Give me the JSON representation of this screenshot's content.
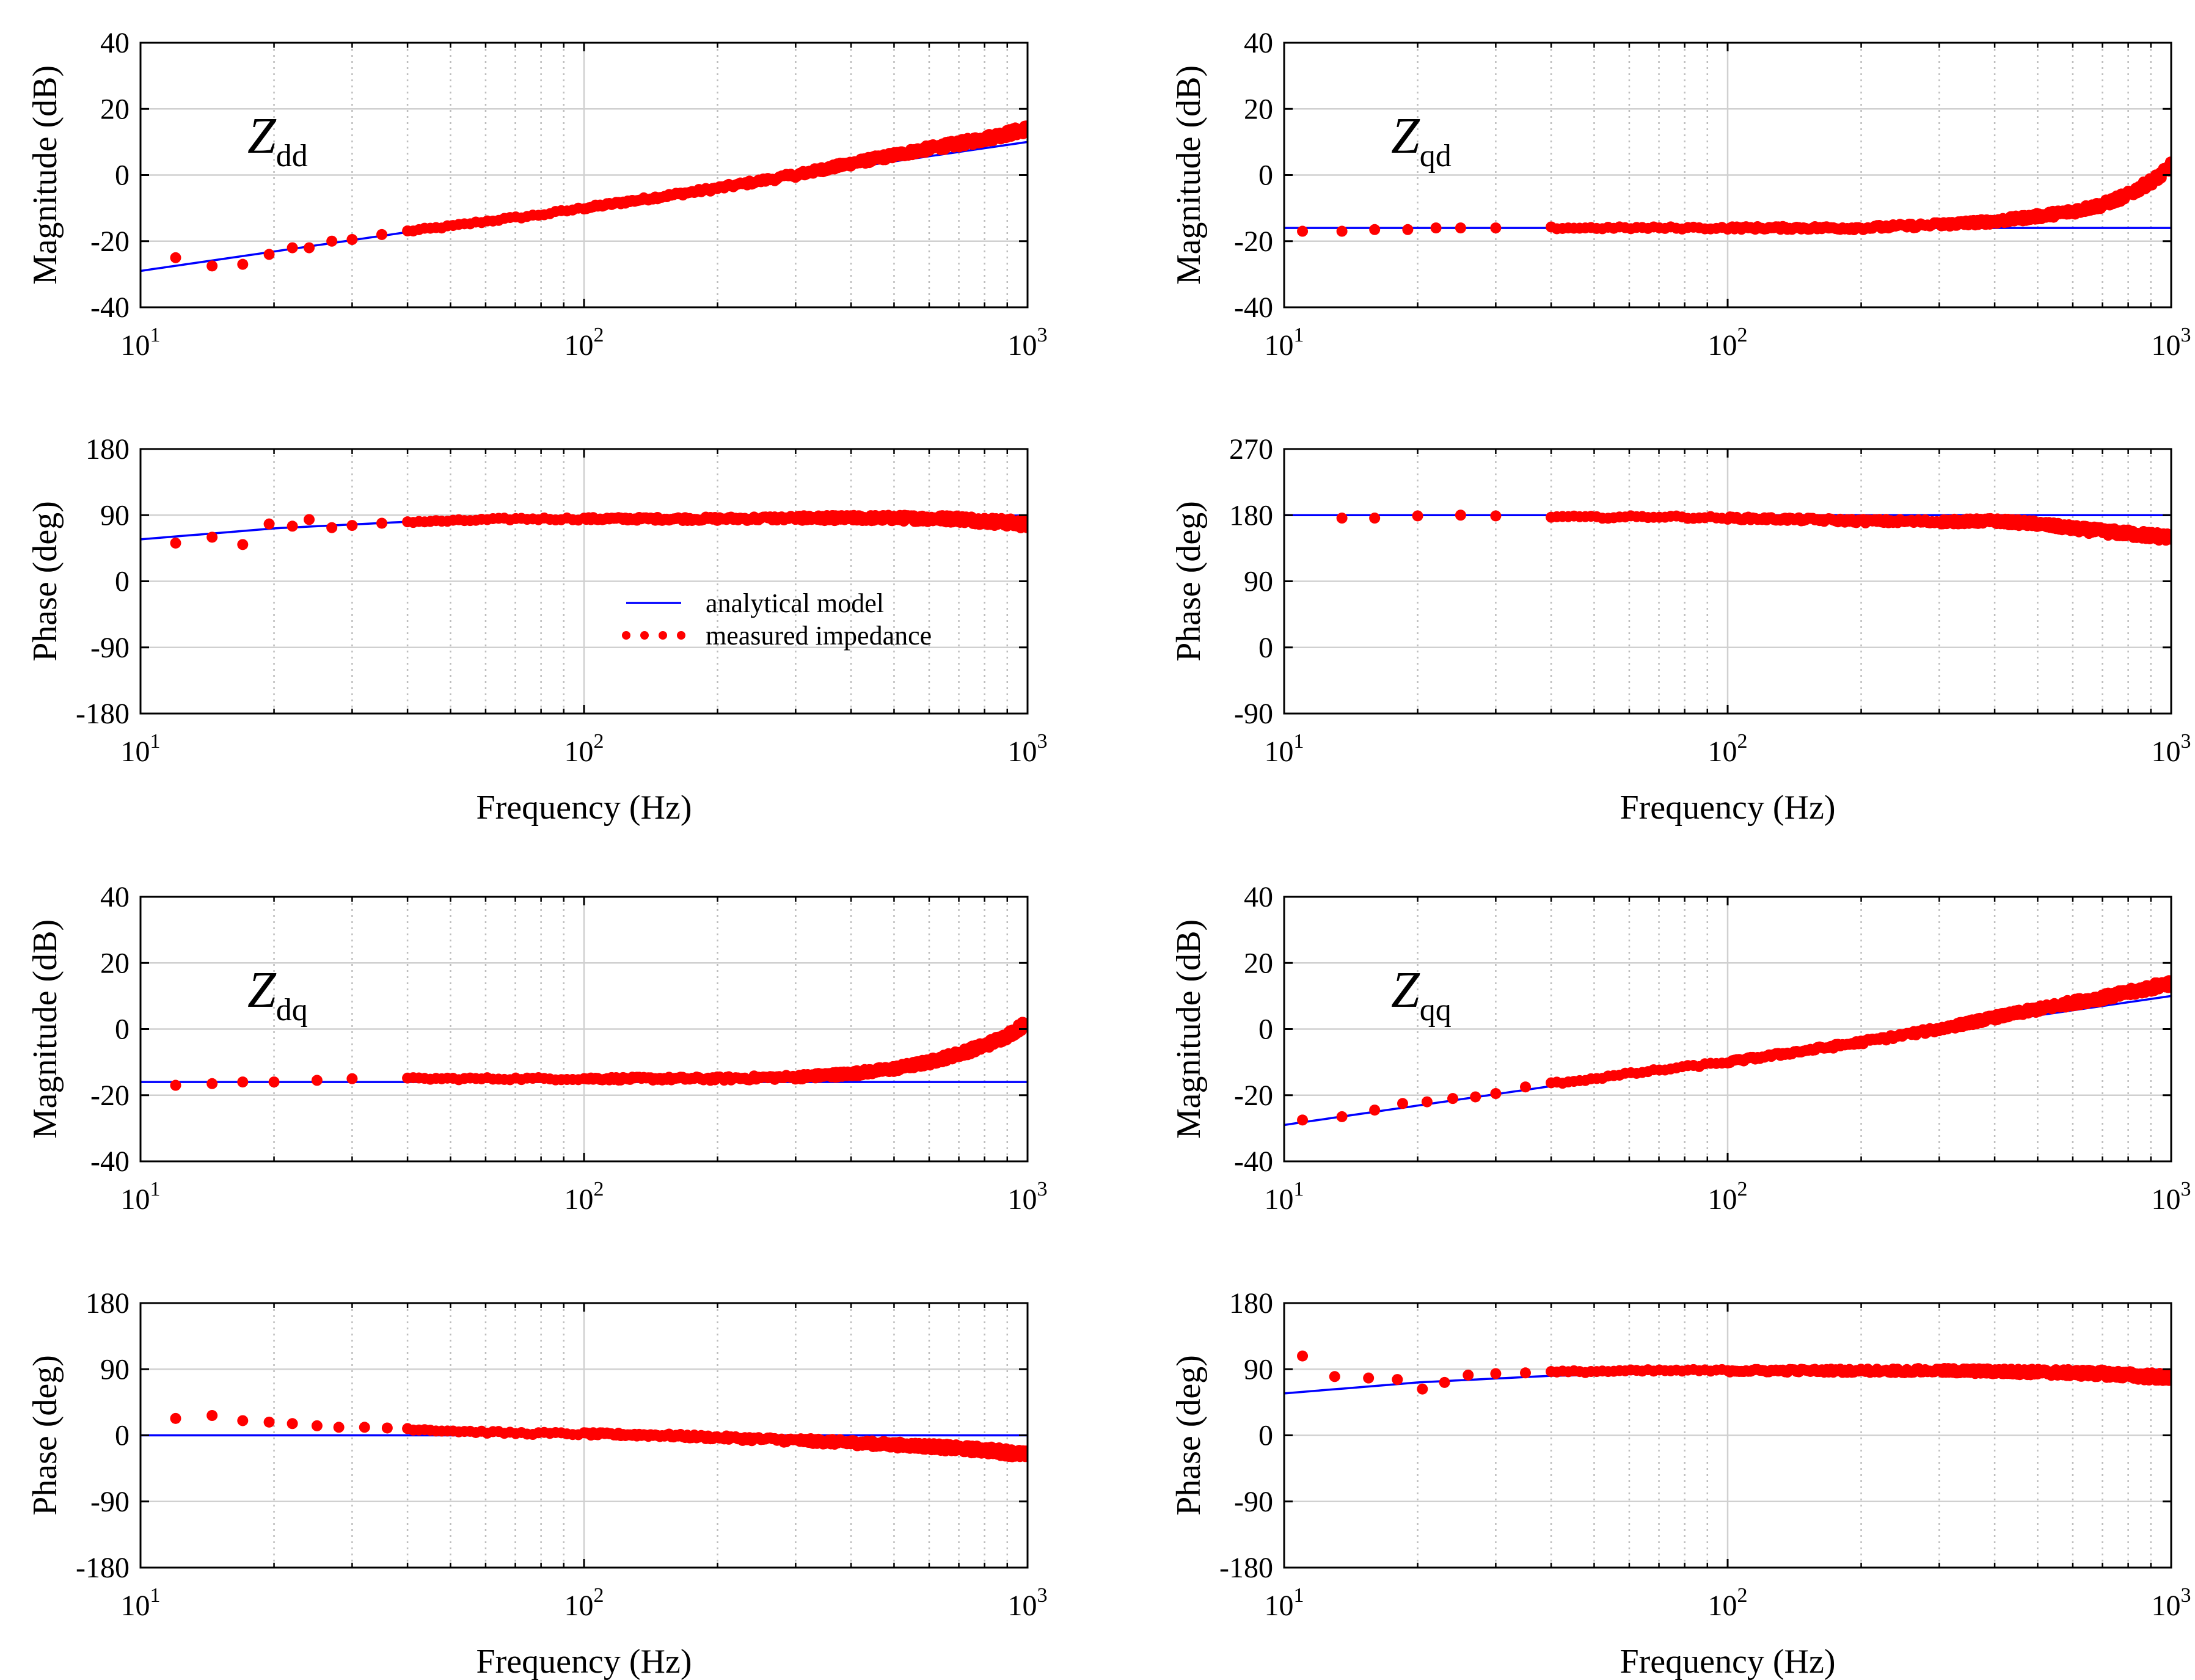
{
  "figure": {
    "colors": {
      "model": "#0000ff",
      "measured": "#ff0000",
      "grid_major": "#d0d0d0",
      "grid_minor": "#bdbdbd",
      "axes": "#000000"
    }
  },
  "legend": {
    "model_label": "analytical model",
    "measured_label": "measured impedance"
  },
  "chart_data": [
    {
      "id": "zdd-mag",
      "type": "line",
      "panel_label": "Z",
      "panel_sub": "dd",
      "xlabel": "",
      "ylabel": "Magnitude (dB)",
      "xscale": "log",
      "xlim": [
        10,
        1000
      ],
      "ylim": [
        -40,
        40
      ],
      "yticks": [
        -40,
        -20,
        0,
        20,
        40
      ],
      "ytick_labels": [
        "-40",
        "-20",
        "0",
        "20",
        "40"
      ],
      "xtick_bases": [
        "10",
        "10",
        "10"
      ],
      "xtick_exps": [
        "1",
        "2",
        "3"
      ],
      "xticks": [
        10,
        100,
        1000
      ],
      "series": [
        {
          "name": "analytical model",
          "style": "line",
          "x": [
            10,
            1000
          ],
          "values": [
            -29,
            10
          ]
        },
        {
          "name": "measured impedance",
          "style": "markers",
          "dense": true,
          "x": [
            12,
            14.5,
            17,
            19.5,
            22,
            24,
            27,
            30,
            35,
            40,
            50,
            60,
            80,
            100,
            150,
            200,
            300,
            400,
            500,
            600,
            700,
            800,
            900,
            1000
          ],
          "values": [
            -25,
            -27.5,
            -27,
            -24,
            -22,
            -22,
            -20,
            -19.5,
            -18,
            -17,
            -15.5,
            -14,
            -12,
            -10,
            -6.5,
            -4,
            0,
            3.5,
            6,
            8,
            9.5,
            11,
            12.5,
            14
          ]
        }
      ]
    },
    {
      "id": "zdd-phase",
      "type": "line",
      "panel_label": "",
      "panel_sub": "",
      "xlabel": "Frequency (Hz)",
      "ylabel": "Phase (deg)",
      "xscale": "log",
      "xlim": [
        10,
        1000
      ],
      "ylim": [
        -180,
        180
      ],
      "yticks": [
        -180,
        -90,
        0,
        90,
        180
      ],
      "ytick_labels": [
        "-180",
        "-90",
        "0",
        "90",
        "180"
      ],
      "xtick_bases": [
        "10",
        "10",
        "10"
      ],
      "xtick_exps": [
        "1",
        "2",
        "3"
      ],
      "xticks": [
        10,
        100,
        1000
      ],
      "legend": true,
      "series": [
        {
          "name": "analytical model",
          "style": "line",
          "x": [
            10,
            20,
            40,
            100,
            1000
          ],
          "values": [
            57,
            72,
            81,
            86,
            89.5
          ]
        },
        {
          "name": "measured impedance",
          "style": "markers",
          "dense": true,
          "x": [
            12,
            14.5,
            17,
            19.5,
            22,
            24,
            27,
            30,
            35,
            40,
            50,
            70,
            100,
            200,
            300,
            400,
            500,
            700,
            800,
            900,
            1000
          ],
          "values": [
            52,
            60,
            50,
            78,
            75,
            84,
            73,
            76,
            79,
            81,
            82,
            85,
            85,
            85,
            86,
            86,
            86,
            85,
            82,
            80,
            77
          ]
        }
      ]
    },
    {
      "id": "zdq-mag",
      "type": "line",
      "panel_label": "Z",
      "panel_sub": "dq",
      "xlabel": "",
      "ylabel": "Magnitude (dB)",
      "xscale": "log",
      "xlim": [
        10,
        1000
      ],
      "ylim": [
        -40,
        40
      ],
      "yticks": [
        -40,
        -20,
        0,
        20,
        40
      ],
      "ytick_labels": [
        "-40",
        "-20",
        "0",
        "20",
        "40"
      ],
      "xtick_bases": [
        "10",
        "10",
        "10"
      ],
      "xtick_exps": [
        "1",
        "2",
        "3"
      ],
      "xticks": [
        10,
        100,
        1000
      ],
      "series": [
        {
          "name": "analytical model",
          "style": "line",
          "x": [
            10,
            1000
          ],
          "values": [
            -16,
            -16
          ]
        },
        {
          "name": "measured impedance",
          "style": "markers",
          "dense": true,
          "x": [
            12,
            14.5,
            17,
            20,
            25,
            30,
            40,
            50,
            70,
            100,
            150,
            200,
            300,
            400,
            500,
            600,
            700,
            800,
            900,
            950,
            1000
          ],
          "values": [
            -17,
            -16.5,
            -16,
            -16,
            -15.5,
            -15,
            -15,
            -15,
            -15,
            -15,
            -15,
            -15,
            -14.5,
            -13.5,
            -12,
            -10,
            -7.5,
            -5,
            -2,
            0,
            2
          ]
        }
      ]
    },
    {
      "id": "zdq-phase",
      "type": "line",
      "panel_label": "",
      "panel_sub": "",
      "xlabel": "Frequency (Hz)",
      "ylabel": "Phase (deg)",
      "xscale": "log",
      "xlim": [
        10,
        1000
      ],
      "ylim": [
        -180,
        180
      ],
      "yticks": [
        -180,
        -90,
        0,
        90,
        180
      ],
      "ytick_labels": [
        "-180",
        "-90",
        "0",
        "90",
        "180"
      ],
      "xtick_bases": [
        "10",
        "10",
        "10"
      ],
      "xtick_exps": [
        "1",
        "2",
        "3"
      ],
      "xticks": [
        10,
        100,
        1000
      ],
      "series": [
        {
          "name": "analytical model",
          "style": "line",
          "x": [
            10,
            1000
          ],
          "values": [
            0,
            0
          ]
        },
        {
          "name": "measured impedance",
          "style": "markers",
          "dense": true,
          "x": [
            12,
            14.5,
            17,
            19.5,
            22,
            25,
            28,
            32,
            36,
            40,
            50,
            70,
            100,
            150,
            200,
            300,
            400,
            500,
            600,
            700,
            800,
            900,
            1000
          ],
          "values": [
            23,
            27,
            20,
            18,
            16,
            13,
            11,
            11,
            10,
            9,
            6,
            3,
            2,
            0,
            -3,
            -7,
            -10,
            -13,
            -15,
            -18,
            -20,
            -23,
            -27
          ]
        }
      ]
    },
    {
      "id": "zqd-mag",
      "type": "line",
      "panel_label": "Z",
      "panel_sub": "qd",
      "xlabel": "",
      "ylabel": "Magnitude (dB)",
      "xscale": "log",
      "xlim": [
        10,
        1000
      ],
      "ylim": [
        -40,
        40
      ],
      "yticks": [
        -40,
        -20,
        0,
        20,
        40
      ],
      "ytick_labels": [
        "-40",
        "-20",
        "0",
        "20",
        "40"
      ],
      "xtick_bases": [
        "10",
        "10",
        "10"
      ],
      "xtick_exps": [
        "1",
        "2",
        "3"
      ],
      "xticks": [
        10,
        100,
        1000
      ],
      "series": [
        {
          "name": "analytical model",
          "style": "line",
          "x": [
            10,
            1000
          ],
          "values": [
            -16,
            -16
          ]
        },
        {
          "name": "measured impedance",
          "style": "markers",
          "dense": true,
          "x": [
            11,
            13.5,
            16,
            19,
            22,
            25,
            30,
            40,
            50,
            70,
            100,
            150,
            200,
            300,
            400,
            500,
            600,
            700,
            800,
            900,
            950,
            1000
          ],
          "values": [
            -17,
            -17,
            -16.5,
            -16.5,
            -16,
            -16,
            -16,
            -16,
            -16,
            -16,
            -16,
            -16,
            -16,
            -15,
            -14,
            -12.5,
            -11,
            -9,
            -6,
            -2,
            0,
            3
          ]
        }
      ]
    },
    {
      "id": "zqd-phase",
      "type": "line",
      "panel_label": "",
      "panel_sub": "",
      "xlabel": "Frequency (Hz)",
      "ylabel": "Phase (deg)",
      "xscale": "log",
      "xlim": [
        10,
        1000
      ],
      "ylim": [
        -90,
        270
      ],
      "yticks": [
        -90,
        0,
        90,
        180,
        270
      ],
      "ytick_labels": [
        "-90",
        "0",
        "90",
        "180",
        "270"
      ],
      "xtick_bases": [
        "10",
        "10",
        "10"
      ],
      "xtick_exps": [
        "1",
        "2",
        "3"
      ],
      "xticks": [
        10,
        100,
        1000
      ],
      "series": [
        {
          "name": "analytical model",
          "style": "line",
          "x": [
            10,
            1000
          ],
          "values": [
            180,
            180
          ]
        },
        {
          "name": "measured impedance",
          "style": "markers",
          "dense": true,
          "x": [
            13.5,
            16,
            20,
            25,
            30,
            40,
            50,
            70,
            100,
            150,
            200,
            300,
            400,
            500,
            600,
            700,
            800,
            900,
            1000
          ],
          "values": [
            176,
            176,
            179,
            180,
            179,
            178,
            177,
            178,
            176,
            174,
            172,
            171,
            172,
            168,
            162,
            158,
            155,
            152,
            150
          ]
        }
      ]
    },
    {
      "id": "zqq-mag",
      "type": "line",
      "panel_label": "Z",
      "panel_sub": "qq",
      "xlabel": "",
      "ylabel": "Magnitude (dB)",
      "xscale": "log",
      "xlim": [
        10,
        1000
      ],
      "ylim": [
        -40,
        40
      ],
      "yticks": [
        -40,
        -20,
        0,
        20,
        40
      ],
      "ytick_labels": [
        "-40",
        "-20",
        "0",
        "20",
        "40"
      ],
      "xtick_bases": [
        "10",
        "10",
        "10"
      ],
      "xtick_exps": [
        "1",
        "2",
        "3"
      ],
      "xticks": [
        10,
        100,
        1000
      ],
      "series": [
        {
          "name": "analytical model",
          "style": "line",
          "x": [
            10,
            1000
          ],
          "values": [
            -29,
            10
          ]
        },
        {
          "name": "measured impedance",
          "style": "markers",
          "dense": true,
          "x": [
            11,
            13.5,
            16,
            18.5,
            21,
            24,
            27,
            30,
            35,
            40,
            50,
            60,
            80,
            100,
            150,
            200,
            300,
            400,
            500,
            600,
            700,
            800,
            900,
            1000
          ],
          "values": [
            -27.5,
            -26.5,
            -24.5,
            -22.5,
            -22,
            -21,
            -20.5,
            -19.5,
            -17.5,
            -16.5,
            -15,
            -13.5,
            -11.5,
            -10,
            -6.5,
            -4,
            0,
            3.5,
            6,
            8,
            9.5,
            11,
            12.5,
            14
          ]
        }
      ]
    },
    {
      "id": "zqq-phase",
      "type": "line",
      "panel_label": "",
      "panel_sub": "",
      "xlabel": "Frequency (Hz)",
      "ylabel": "Phase (deg)",
      "xscale": "log",
      "xlim": [
        10,
        1000
      ],
      "ylim": [
        -180,
        180
      ],
      "yticks": [
        -180,
        -90,
        0,
        90,
        180
      ],
      "ytick_labels": [
        "-180",
        "-90",
        "0",
        "90",
        "180"
      ],
      "xtick_bases": [
        "10",
        "10",
        "10"
      ],
      "xtick_exps": [
        "1",
        "2",
        "3"
      ],
      "xticks": [
        10,
        100,
        1000
      ],
      "series": [
        {
          "name": "analytical model",
          "style": "line",
          "x": [
            10,
            20,
            40,
            100,
            1000
          ],
          "values": [
            57,
            72,
            81,
            86,
            89.5
          ]
        },
        {
          "name": "measured impedance",
          "style": "markers",
          "dense": true,
          "x": [
            11,
            13,
            15.5,
            18,
            20.5,
            23,
            26,
            30,
            35,
            40,
            50,
            70,
            100,
            200,
            300,
            400,
            500,
            700,
            800,
            900,
            1000
          ],
          "values": [
            108,
            80,
            78,
            76,
            63,
            72,
            82,
            84,
            85,
            86,
            87,
            88,
            88,
            88,
            88,
            87,
            86,
            84,
            82,
            80,
            78
          ]
        }
      ]
    }
  ]
}
